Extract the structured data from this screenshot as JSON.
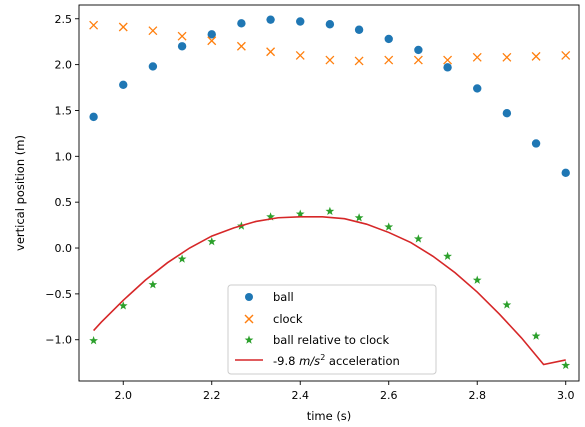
{
  "chart_data": {
    "type": "scatter",
    "xlabel": "time (s)",
    "ylabel": "vertical position (m)",
    "xlim": [
      1.9,
      3.03
    ],
    "ylim": [
      -1.45,
      2.65
    ],
    "xticks": [
      2.0,
      2.2,
      2.4,
      2.6,
      2.8,
      3.0
    ],
    "yticks": [
      -1.0,
      -0.5,
      0.0,
      0.5,
      1.0,
      1.5,
      2.0,
      2.5
    ],
    "xtick_labels": [
      "2.0",
      "2.2",
      "2.4",
      "2.6",
      "2.8",
      "3.0"
    ],
    "ytick_labels": [
      "−1.0",
      "−0.5",
      "0.0",
      "0.5",
      "1.0",
      "1.5",
      "2.0",
      "2.5"
    ],
    "grid": false,
    "legend_position": "bottom-center",
    "series": [
      {
        "name": "ball",
        "kind": "points",
        "marker": "circle",
        "color": "#1f77b4",
        "x": [
          1.933,
          2.0,
          2.067,
          2.133,
          2.2,
          2.267,
          2.333,
          2.4,
          2.467,
          2.533,
          2.6,
          2.667,
          2.733,
          2.8,
          2.867,
          2.933,
          3.0
        ],
        "y": [
          1.43,
          1.78,
          1.98,
          2.2,
          2.33,
          2.45,
          2.49,
          2.47,
          2.44,
          2.38,
          2.28,
          2.16,
          1.97,
          1.74,
          1.47,
          1.14,
          0.82
        ]
      },
      {
        "name": "clock",
        "kind": "points",
        "marker": "x",
        "color": "#ff7f0e",
        "x": [
          1.933,
          2.0,
          2.067,
          2.133,
          2.2,
          2.267,
          2.333,
          2.4,
          2.467,
          2.533,
          2.6,
          2.667,
          2.733,
          2.8,
          2.867,
          2.933,
          3.0
        ],
        "y": [
          2.43,
          2.41,
          2.37,
          2.31,
          2.26,
          2.2,
          2.14,
          2.1,
          2.05,
          2.04,
          2.05,
          2.05,
          2.05,
          2.08,
          2.08,
          2.09,
          2.1
        ]
      },
      {
        "name": "ball relative to clock",
        "kind": "points",
        "marker": "star",
        "color": "#2ca02c",
        "x": [
          1.933,
          2.0,
          2.067,
          2.133,
          2.2,
          2.267,
          2.333,
          2.4,
          2.467,
          2.533,
          2.6,
          2.667,
          2.733,
          2.8,
          2.867,
          2.933,
          3.0
        ],
        "y": [
          -1.01,
          -0.63,
          -0.4,
          -0.12,
          0.07,
          0.24,
          0.34,
          0.37,
          0.4,
          0.33,
          0.23,
          0.1,
          -0.09,
          -0.35,
          -0.62,
          -0.96,
          -1.28
        ]
      },
      {
        "name": "-9.8 m/s² acceleration",
        "kind": "line",
        "color": "#d62728",
        "x": [
          1.933,
          1.95,
          2.0,
          2.05,
          2.1,
          2.15,
          2.2,
          2.25,
          2.3,
          2.35,
          2.4,
          2.43,
          2.45,
          2.5,
          2.55,
          2.6,
          2.65,
          2.7,
          2.75,
          2.8,
          2.85,
          2.9,
          2.95,
          3.0
        ],
        "y": [
          -0.9,
          -0.81,
          -0.57,
          -0.35,
          -0.16,
          0.0,
          0.13,
          0.22,
          0.29,
          0.33,
          0.34,
          0.34,
          0.34,
          0.32,
          0.26,
          0.17,
          0.06,
          -0.09,
          -0.27,
          -0.48,
          -0.72,
          -0.98,
          -1.27,
          -1.22
        ]
      }
    ],
    "legend": {
      "entries": [
        "ball",
        "clock",
        "ball relative to clock"
      ],
      "line_label_prefix": "-9.8 ",
      "line_label_unit": "m/s",
      "line_label_sup": "2",
      "line_label_suffix": " acceleration"
    }
  }
}
